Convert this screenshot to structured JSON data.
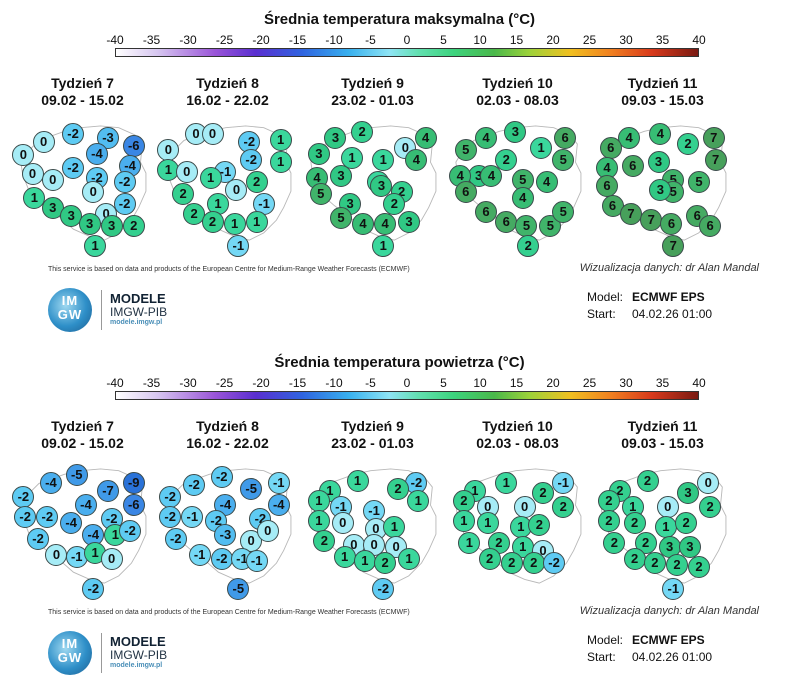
{
  "colors": {
    "c_m9": "#2a72d8",
    "c_m6": "#3a86e4",
    "c_m5": "#409ae8",
    "c_m4": "#4aaeee",
    "c_m3": "#52bdf1",
    "c_m2": "#5ecbf3",
    "c_m1": "#74d8f5",
    "c_0": "#a6ecf6",
    "c_1": "#3ad79c",
    "c_2": "#34d08f",
    "c_3": "#30c884",
    "c_4": "#37bd74",
    "c_5": "#40b46a",
    "c_6": "#45aa62",
    "c_7": "#47a05b"
  },
  "panels": [
    {
      "title": "Średnia temperatura maksymalna (°C)",
      "scale": [
        "-40",
        "-35",
        "-30",
        "-25",
        "-20",
        "-15",
        "-10",
        "-5",
        "0",
        "5",
        "10",
        "15",
        "20",
        "25",
        "30",
        "35",
        "40"
      ],
      "weeks": [
        {
          "label": "Tydzień 7",
          "dates": "09.02 - 15.02",
          "values": [
            "0",
            "-2",
            "-3",
            "-6",
            "0",
            "-2",
            "-4",
            "-4",
            "0",
            "0",
            "-2",
            "1",
            "0",
            "-2",
            "3",
            "0",
            "-2",
            "3",
            "3",
            "3",
            "2",
            "1"
          ]
        },
        {
          "label": "Tydzień 8",
          "dates": "16.02 - 22.02",
          "values": [
            "0",
            "0",
            "-2",
            "1",
            "0",
            "-1",
            "-2",
            "1",
            "1",
            "0",
            "1",
            "0",
            "2",
            "2",
            "1",
            "-1",
            "2",
            "2",
            "1",
            "1",
            "-1"
          ]
        },
        {
          "label": "Tydzień 9",
          "dates": "23.02 - 01.03",
          "values": [
            "3",
            "2",
            "0",
            "4",
            "3",
            "1",
            "1",
            "4",
            "4",
            "3",
            "1",
            "3",
            "2",
            "5",
            "3",
            "2",
            "5",
            "4",
            "4",
            "3",
            "1"
          ]
        },
        {
          "label": "Tydzień 10",
          "dates": "02.03 - 08.03",
          "values": [
            "4",
            "3",
            "1",
            "6",
            "5",
            "3",
            "2",
            "5",
            "4",
            "4",
            "5",
            "4",
            "6",
            "4",
            "6",
            "6",
            "5",
            "5",
            "5",
            "2"
          ]
        },
        {
          "label": "Tydzień 11",
          "dates": "09.03 - 15.03",
          "values": [
            "4",
            "4",
            "2",
            "7",
            "6",
            "4",
            "3",
            "7",
            "6",
            "6",
            "5",
            "5",
            "6",
            "5",
            "7",
            "7",
            "6",
            "6",
            "6",
            "7",
            "3"
          ]
        }
      ],
      "credit": "This service is based on data and products of the European Centre for Medium-Range Weather Forecasts (ECMWF)",
      "viz": "Wizualizacja danych: dr Alan Mandal",
      "logo": {
        "badge": "IM GW",
        "line1": "MODELE",
        "line2": "IMGW-PIB",
        "line3": "modele.imgw.pl"
      },
      "meta": {
        "model_label": "Model:",
        "model_value": "ECMWF EPS",
        "start_label": "Start:",
        "start_value": "04.02.26 01:00"
      }
    },
    {
      "title": "Średnia temperatura powietrza (°C)",
      "scale": [
        "-40",
        "-35",
        "-30",
        "-25",
        "-20",
        "-15",
        "-10",
        "-5",
        "0",
        "5",
        "10",
        "15",
        "20",
        "25",
        "30",
        "35",
        "40"
      ],
      "weeks": [
        {
          "label": "Tydzień 7",
          "dates": "09.02 - 15.02",
          "values": [
            "-4",
            "-5",
            "-7",
            "-9",
            "-2",
            "-4",
            "-6",
            "-2",
            "-2",
            "-4",
            "-2",
            "-2",
            "-4",
            "1",
            "-2",
            "0",
            "-1",
            "1",
            "0",
            "-2"
          ]
        },
        {
          "label": "Tydzień 8",
          "dates": "16.02 - 22.02",
          "values": [
            "-2",
            "-2",
            "-5",
            "-1",
            "-2",
            "-4",
            "-4",
            "-2",
            "-1",
            "-2",
            "-2",
            "-2",
            "-3",
            "0",
            "0",
            "-1",
            "-2",
            "-1",
            "-1",
            "-5"
          ]
        },
        {
          "label": "Tydzień 9",
          "dates": "23.02 - 01.03",
          "values": [
            "1",
            "1",
            "-2",
            "2",
            "1",
            "-1",
            "-1",
            "1",
            "1",
            "0",
            "0",
            "1",
            "2",
            "0",
            "0",
            "0",
            "1",
            "1",
            "2",
            "1",
            "-2"
          ]
        },
        {
          "label": "Tydzień 10",
          "dates": "02.03 - 08.03",
          "values": [
            "1",
            "1",
            "-1",
            "2",
            "2",
            "0",
            "0",
            "2",
            "1",
            "1",
            "1",
            "2",
            "1",
            "2",
            "1",
            "0",
            "2",
            "2",
            "2",
            "-2"
          ]
        },
        {
          "label": "Tydzień 11",
          "dates": "09.03 - 15.03",
          "values": [
            "2",
            "2",
            "0",
            "3",
            "2",
            "1",
            "0",
            "2",
            "2",
            "2",
            "1",
            "2",
            "2",
            "2",
            "3",
            "3",
            "2",
            "2",
            "2",
            "2",
            "-1"
          ]
        }
      ],
      "credit": "This service is based on data and products of the European Centre for Medium-Range Weather Forecasts (ECMWF)",
      "viz": "Wizualizacja danych: dr Alan Mandal",
      "logo": {
        "badge": "IM GW",
        "line1": "MODELE",
        "line2": "IMGW-PIB",
        "line3": "modele.imgw.pl"
      },
      "meta": {
        "model_label": "Model:",
        "model_value": "ECMWF EPS",
        "start_label": "Start:",
        "start_value": "04.02.26 01:00"
      }
    }
  ]
}
